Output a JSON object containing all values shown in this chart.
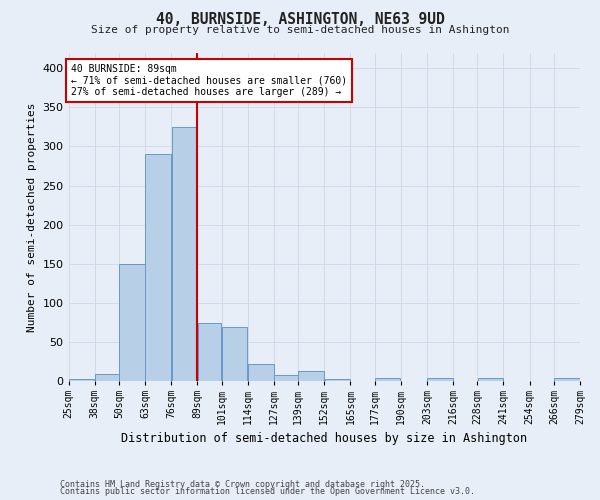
{
  "title": "40, BURNSIDE, ASHINGTON, NE63 9UD",
  "subtitle": "Size of property relative to semi-detached houses in Ashington",
  "xlabel": "Distribution of semi-detached houses by size in Ashington",
  "ylabel": "Number of semi-detached properties",
  "footnote1": "Contains HM Land Registry data © Crown copyright and database right 2025.",
  "footnote2": "Contains public sector information licensed under the Open Government Licence v3.0.",
  "annotation_title": "40 BURNSIDE: 89sqm",
  "annotation_line1": "← 71% of semi-detached houses are smaller (760)",
  "annotation_line2": "27% of semi-detached houses are larger (289) →",
  "bins": [
    25,
    38,
    50,
    63,
    76,
    89,
    101,
    114,
    127,
    139,
    152,
    165,
    177,
    190,
    203,
    216,
    228,
    241,
    254,
    266,
    279
  ],
  "bar_heights": [
    3,
    10,
    150,
    290,
    325,
    75,
    70,
    22,
    8,
    13,
    3,
    0,
    4,
    0,
    4,
    0,
    4,
    0,
    0,
    4
  ],
  "bar_color": "#b8cfe8",
  "bar_edge_color": "#6699cc",
  "vline_color": "#cc0000",
  "vline_x": 89,
  "annotation_box_color": "#cc0000",
  "grid_color": "#d0d8e8",
  "background_color": "#e8eef8",
  "ylim": [
    0,
    420
  ],
  "yticks": [
    0,
    50,
    100,
    150,
    200,
    250,
    300,
    350,
    400
  ]
}
